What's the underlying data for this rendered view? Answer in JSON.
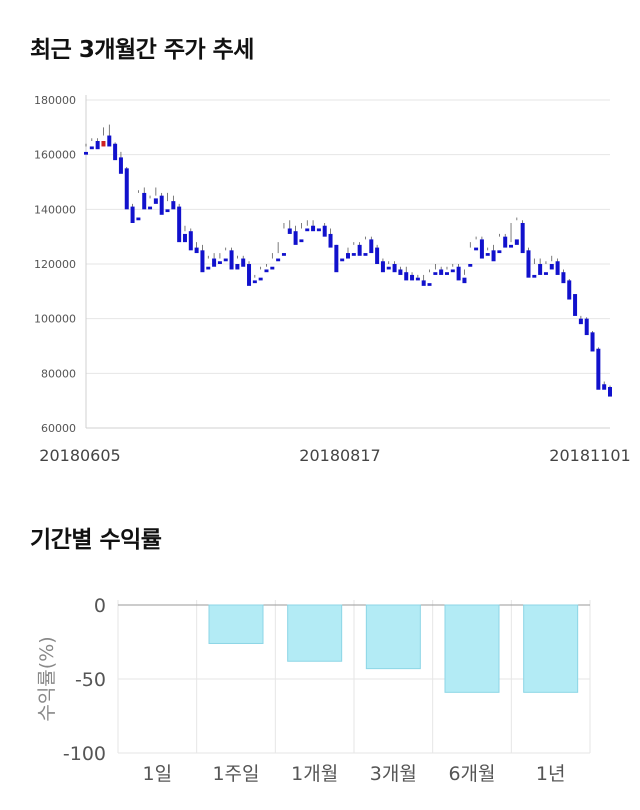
{
  "charts": {
    "price": {
      "title": "최근 3개월간 주가 추세"
    },
    "returns": {
      "title": "기간별 수익률"
    }
  },
  "chart_data": [
    {
      "type": "candlestick",
      "title": "최근 3개월간 주가 추세",
      "ylim": [
        60000,
        180000
      ],
      "yticks": [
        "180000",
        "160000",
        "140000",
        "120000",
        "100000",
        "80000",
        "60000"
      ],
      "xticks": [
        "20180605",
        "20180817",
        "20181101"
      ],
      "grid": true,
      "colors": {
        "up": "#cc2222",
        "down": "#1111cc"
      },
      "candles": [
        [
          161000,
          164000,
          163000,
          160000
        ],
        [
          163000,
          166000,
          165000,
          162000
        ],
        [
          165000,
          166000,
          163000,
          162000
        ],
        [
          163000,
          170000,
          167000,
          165000
        ],
        [
          167000,
          171000,
          164000,
          163000
        ],
        [
          164000,
          164500,
          159000,
          158000
        ],
        [
          159000,
          161000,
          155000,
          153000
        ],
        [
          155000,
          155500,
          141000,
          140000
        ],
        [
          141000,
          142000,
          137000,
          135000
        ],
        [
          137000,
          147000,
          146000,
          136000
        ],
        [
          146000,
          148000,
          141000,
          140000
        ],
        [
          141000,
          145000,
          144000,
          140000
        ],
        [
          144000,
          148000,
          145000,
          142000
        ],
        [
          145000,
          146000,
          140000,
          138000
        ],
        [
          140000,
          146000,
          143000,
          139000
        ],
        [
          143000,
          145000,
          141000,
          140000
        ],
        [
          141000,
          142000,
          131000,
          128000
        ],
        [
          131000,
          134000,
          132000,
          128000
        ],
        [
          132000,
          133000,
          126000,
          125000
        ],
        [
          126000,
          128000,
          125000,
          124000
        ],
        [
          125000,
          127000,
          118000,
          117000
        ],
        [
          119000,
          123000,
          122000,
          118000
        ],
        [
          122000,
          124000,
          121000,
          119000
        ],
        [
          121000,
          124000,
          122000,
          120000
        ],
        [
          122000,
          126000,
          125000,
          121000
        ],
        [
          125000,
          126000,
          120000,
          118000
        ],
        [
          120000,
          123000,
          122000,
          118000
        ],
        [
          122000,
          123000,
          120000,
          119000
        ],
        [
          120000,
          121000,
          114000,
          112000
        ],
        [
          114000,
          116000,
          115000,
          113000
        ],
        [
          115000,
          119000,
          118000,
          114000
        ],
        [
          118000,
          120000,
          119000,
          117000
        ],
        [
          119000,
          124000,
          122000,
          118000
        ],
        [
          122000,
          128000,
          124000,
          121000
        ],
        [
          124000,
          135000,
          133000,
          123000
        ],
        [
          133000,
          136000,
          132000,
          131000
        ],
        [
          132000,
          134000,
          129000,
          127000
        ],
        [
          129000,
          135000,
          133000,
          128000
        ],
        [
          133000,
          136000,
          134000,
          132000
        ],
        [
          134000,
          136000,
          133000,
          132000
        ],
        [
          133000,
          134000,
          134000,
          132000
        ],
        [
          134000,
          135000,
          131000,
          130000
        ],
        [
          131000,
          133000,
          127000,
          126000
        ],
        [
          127000,
          127000,
          119000,
          117000
        ],
        [
          122000,
          124000,
          124000,
          121000
        ],
        [
          124000,
          126000,
          123000,
          122000
        ],
        [
          124000,
          128000,
          127000,
          123000
        ],
        [
          127000,
          128000,
          124000,
          123000
        ],
        [
          124000,
          130000,
          129000,
          123000
        ],
        [
          129000,
          130000,
          126000,
          124000
        ],
        [
          126000,
          127000,
          121000,
          120000
        ],
        [
          121000,
          122000,
          119000,
          117000
        ],
        [
          119000,
          121000,
          120000,
          118000
        ],
        [
          120000,
          121000,
          118000,
          117000
        ],
        [
          118000,
          119000,
          117000,
          116000
        ],
        [
          117000,
          119000,
          115000,
          114000
        ],
        [
          116000,
          117000,
          115000,
          114000
        ],
        [
          115000,
          116000,
          115000,
          114000
        ],
        [
          114000,
          116000,
          113000,
          112000
        ],
        [
          113000,
          118000,
          117000,
          112000
        ],
        [
          117000,
          120000,
          118000,
          116000
        ],
        [
          118000,
          119000,
          117000,
          116000
        ],
        [
          117000,
          119000,
          118000,
          116000
        ],
        [
          118000,
          120000,
          119000,
          117000
        ],
        [
          119000,
          120000,
          115000,
          114000
        ],
        [
          115000,
          118000,
          116000,
          113000
        ],
        [
          120000,
          128000,
          126000,
          119000
        ],
        [
          126000,
          130000,
          129000,
          125000
        ],
        [
          129000,
          130000,
          124000,
          122000
        ],
        [
          124000,
          126000,
          125000,
          123000
        ],
        [
          125000,
          127000,
          123000,
          121000
        ],
        [
          125000,
          131000,
          130000,
          124000
        ],
        [
          130000,
          131000,
          127000,
          126000
        ],
        [
          127000,
          135000,
          128000,
          126000
        ],
        [
          129000,
          137000,
          136000,
          127000
        ],
        [
          135000,
          136000,
          125000,
          124000
        ],
        [
          125000,
          126000,
          117000,
          115000
        ],
        [
          116000,
          122000,
          120000,
          115000
        ],
        [
          120000,
          122000,
          117000,
          116000
        ],
        [
          117000,
          121000,
          120000,
          116000
        ],
        [
          120000,
          123000,
          121000,
          118000
        ],
        [
          121000,
          122000,
          117000,
          116000
        ],
        [
          117000,
          118000,
          114000,
          113000
        ],
        [
          114000,
          114500,
          109000,
          107000
        ],
        [
          109000,
          109000,
          102000,
          101000
        ],
        [
          100000,
          101000,
          99500,
          98000
        ],
        [
          100000,
          100500,
          95000,
          94000
        ],
        [
          95000,
          95500,
          89000,
          88000
        ],
        [
          89000,
          89500,
          75000,
          74000
        ],
        [
          76000,
          77000,
          75000,
          74000
        ],
        [
          75000,
          75500,
          72000,
          71500
        ]
      ]
    },
    {
      "type": "bar",
      "title": "기간별 수익률",
      "categories": [
        "1일",
        "1주일",
        "1개월",
        "3개월",
        "6개월",
        "1년"
      ],
      "values": [
        0,
        -26,
        -38,
        -43,
        -59,
        -59
      ],
      "ylabel": "수익률(%)",
      "ylim": [
        -100,
        0
      ],
      "yticks": [
        "0",
        "-50",
        "-100"
      ],
      "grid": true,
      "colors": {
        "bar": "#b3ebf5",
        "bar_edge": "#8cd6e6"
      }
    }
  ]
}
